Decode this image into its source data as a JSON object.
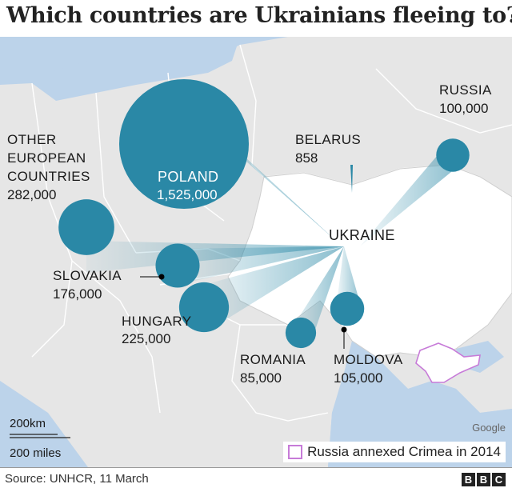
{
  "title": "Which countries are Ukrainians fleeing to?",
  "source": "Source: UNHCR, 11 March",
  "brand": [
    "B",
    "B",
    "C"
  ],
  "google_credit": "Google",
  "scale": {
    "km": "200km",
    "miles": "200 miles"
  },
  "legend": {
    "label": "Russia annexed Crimea in 2014",
    "color": "#c77bd8"
  },
  "colors": {
    "bubble": "#2a88a6",
    "sea": "#bcd3ea",
    "land": "#e4e4e4",
    "ukraine": "#ffffff"
  },
  "origin": "UKRAINE",
  "belarus": {
    "name": "BELARUS",
    "value": "858"
  },
  "destinations": [
    {
      "id": "poland",
      "name": "POLAND",
      "value": "1,525,000",
      "refugees": 1525000
    },
    {
      "id": "other",
      "name": "OTHER EUROPEAN COUNTRIES",
      "lines": [
        "OTHER",
        "EUROPEAN",
        "COUNTRIES"
      ],
      "value": "282,000",
      "refugees": 282000
    },
    {
      "id": "slovakia",
      "name": "SLOVAKIA",
      "value": "176,000",
      "refugees": 176000
    },
    {
      "id": "hungary",
      "name": "HUNGARY",
      "value": "225,000",
      "refugees": 225000
    },
    {
      "id": "romania",
      "name": "ROMANIA",
      "value": "85,000",
      "refugees": 85000
    },
    {
      "id": "moldova",
      "name": "MOLDOVA",
      "value": "105,000",
      "refugees": 105000
    },
    {
      "id": "russia",
      "name": "RUSSIA",
      "value": "100,000",
      "refugees": 100000
    }
  ]
}
